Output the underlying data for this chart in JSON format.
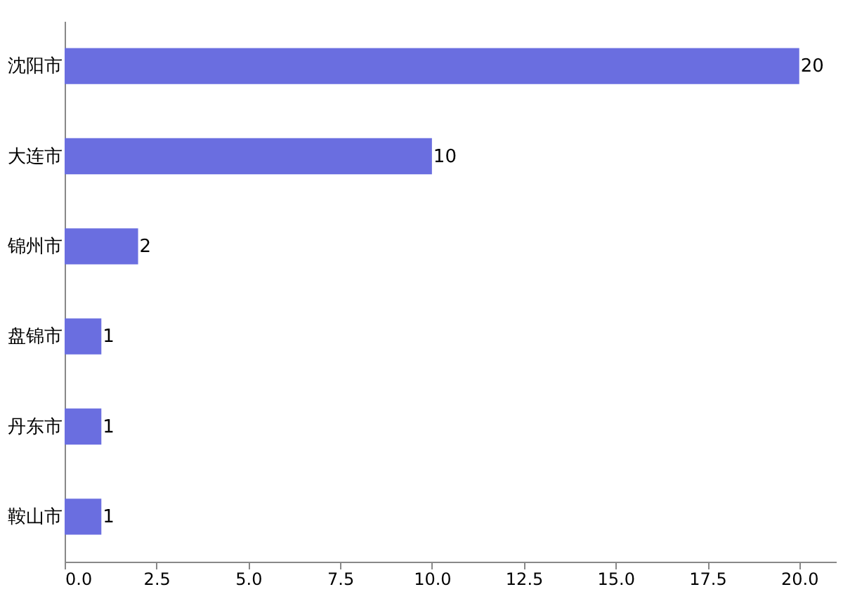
{
  "chart_data": {
    "type": "bar",
    "orientation": "horizontal",
    "categories": [
      "沈阳市",
      "大连市",
      "锦州市",
      "盘锦市",
      "丹东市",
      "鞍山市"
    ],
    "values": [
      20,
      10,
      2,
      1,
      1,
      1
    ],
    "color": "#6a6ee0",
    "xlim": [
      0,
      21
    ],
    "xticks": [
      {
        "value": 0,
        "label": "0.0"
      },
      {
        "value": 2.5,
        "label": "2.5"
      },
      {
        "value": 5,
        "label": "5.0"
      },
      {
        "value": 7.5,
        "label": "7.5"
      },
      {
        "value": 10,
        "label": "10.0"
      },
      {
        "value": 12.5,
        "label": "12.5"
      },
      {
        "value": 15,
        "label": "15.0"
      },
      {
        "value": 17.5,
        "label": "17.5"
      },
      {
        "value": 20,
        "label": "20.0"
      }
    ],
    "data_labels": true,
    "grid": false
  }
}
